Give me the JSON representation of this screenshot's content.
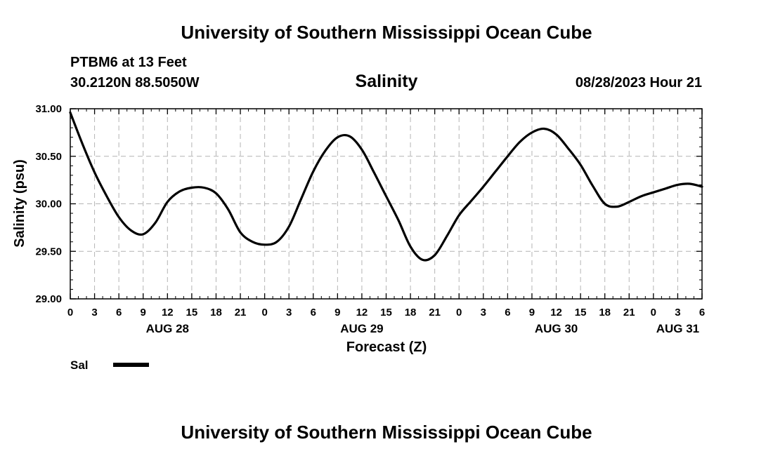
{
  "header": {
    "title": "University of Southern Mississippi Ocean Cube",
    "station": "PTBM6 at 13 Feet",
    "coords": "30.2120N  88.5050W",
    "timestamp": "08/28/2023 Hour 21",
    "footer_title": "University of Southern Mississippi Ocean Cube"
  },
  "chart_data": {
    "type": "line",
    "title": "Salinity",
    "xlabel": "Forecast (Z)",
    "ylabel": "Salinity (psu)",
    "ylim": [
      29.0,
      31.0
    ],
    "xlim_hours": [
      0,
      78
    ],
    "grid": true,
    "y_ticks": [
      "29.00",
      "29.50",
      "30.00",
      "30.50",
      "31.00"
    ],
    "x_tick_labels": [
      "0",
      "3",
      "6",
      "9",
      "12",
      "15",
      "18",
      "21",
      "0",
      "3",
      "6",
      "9",
      "12",
      "15",
      "18",
      "21",
      "0",
      "3",
      "6",
      "9",
      "12",
      "15",
      "18",
      "21",
      "0",
      "3",
      "6"
    ],
    "date_labels": [
      {
        "label": "AUG 28",
        "hour": 12
      },
      {
        "label": "AUG 29",
        "hour": 36
      },
      {
        "label": "AUG 30",
        "hour": 60
      },
      {
        "label": "AUG 31",
        "hour": 75
      }
    ],
    "legend": {
      "placement": "bottom-left",
      "entries": [
        {
          "name": "Sal",
          "color": "#000000"
        }
      ]
    },
    "series": [
      {
        "name": "Sal",
        "color": "#000000",
        "x": [
          0,
          1.5,
          3,
          4.5,
          6,
          7.5,
          9,
          10.5,
          12,
          13.5,
          15,
          16.5,
          18,
          19.5,
          21,
          22.5,
          24,
          25.5,
          27,
          28.5,
          30,
          31.5,
          33,
          34.5,
          36,
          37.5,
          39,
          40.5,
          42,
          43.5,
          45,
          46.5,
          48,
          49.5,
          51,
          52.5,
          54,
          55.5,
          57,
          58.5,
          60,
          61.5,
          63,
          64.5,
          66,
          67.5,
          69,
          70.5,
          72,
          73.5,
          75,
          76.5,
          78
        ],
        "values": [
          30.96,
          30.63,
          30.33,
          30.08,
          29.86,
          29.72,
          29.68,
          29.8,
          30.02,
          30.13,
          30.17,
          30.17,
          30.11,
          29.94,
          29.7,
          29.6,
          29.57,
          29.6,
          29.76,
          30.05,
          30.34,
          30.56,
          30.7,
          30.71,
          30.57,
          30.33,
          30.08,
          29.83,
          29.55,
          29.41,
          29.46,
          29.66,
          29.88,
          30.03,
          30.18,
          30.34,
          30.5,
          30.65,
          30.75,
          30.79,
          30.73,
          30.58,
          30.41,
          30.19,
          30.0,
          29.97,
          30.02,
          30.08,
          30.12,
          30.16,
          30.2,
          30.21,
          30.18
        ]
      }
    ]
  }
}
